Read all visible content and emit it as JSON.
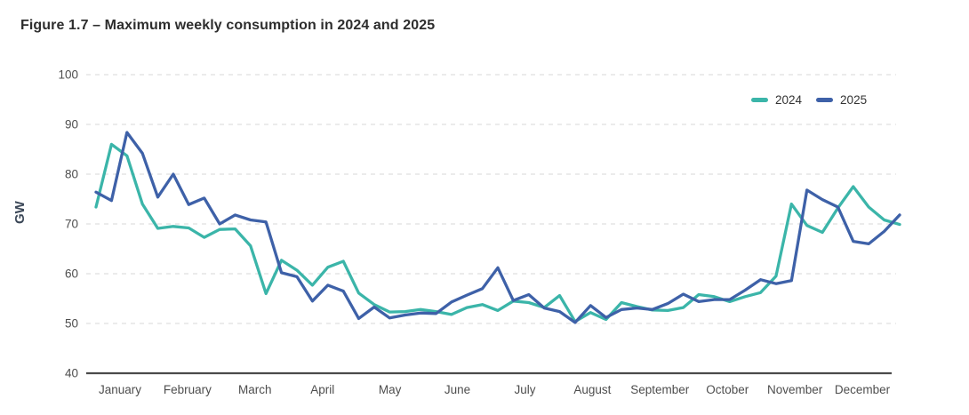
{
  "title": "Figure 1.7 – Maximum weekly consumption in 2024 and 2025",
  "y_axis_title": "GW",
  "legend": {
    "items": [
      {
        "label": "2024",
        "color": "#3bb5a9"
      },
      {
        "label": "2025",
        "color": "#3e61a8"
      }
    ]
  },
  "chart_data": {
    "type": "line",
    "title": "Figure 1.7 – Maximum weekly consumption in 2024 and 2025",
    "xlabel": "",
    "ylabel": "GW",
    "ylim": [
      40,
      100
    ],
    "yticks": [
      40,
      50,
      60,
      70,
      80,
      90,
      100
    ],
    "grid": "horizontal-dashed",
    "legend_position": "top-right",
    "x_unit": "week of year (53 weekly values per series)",
    "month_labels": [
      "January",
      "February",
      "March",
      "April",
      "May",
      "June",
      "July",
      "August",
      "September",
      "October",
      "November",
      "December"
    ],
    "series": [
      {
        "name": "2024",
        "color": "#3bb5a9",
        "values": [
          73.4,
          86.0,
          83.7,
          74.0,
          69.1,
          69.5,
          69.2,
          67.3,
          68.9,
          69.0,
          65.6,
          56.0,
          62.7,
          60.7,
          57.7,
          61.3,
          62.5,
          56.1,
          53.8,
          52.3,
          52.4,
          52.8,
          52.4,
          51.8,
          53.2,
          53.8,
          52.6,
          54.5,
          54.2,
          53.2,
          55.6,
          50.4,
          52.2,
          50.8,
          54.2,
          53.4,
          52.7,
          52.6,
          53.2,
          55.8,
          55.4,
          54.4,
          55.4,
          56.2,
          59.5,
          74.0,
          69.7,
          68.3,
          73.2,
          77.5,
          73.4,
          70.8,
          69.9
        ]
      },
      {
        "name": "2025",
        "color": "#3e61a8",
        "values": [
          76.4,
          74.7,
          88.4,
          84.2,
          75.4,
          80.0,
          73.9,
          75.2,
          70.0,
          71.8,
          70.8,
          70.4,
          60.2,
          59.4,
          54.5,
          57.7,
          56.5,
          51.0,
          53.3,
          51.1,
          51.7,
          52.1,
          52.0,
          54.3,
          55.7,
          57.0,
          61.2,
          54.6,
          55.8,
          53.1,
          52.4,
          50.2,
          53.6,
          51.2,
          52.8,
          53.1,
          52.8,
          54.0,
          55.9,
          54.4,
          54.8,
          54.8,
          56.7,
          58.8,
          58.0,
          58.6,
          76.8,
          74.9,
          73.4,
          66.5,
          66.0,
          68.5,
          71.8
        ]
      }
    ],
    "colors": {
      "gridline": "#d7d7d7",
      "axis_line": "#4b4b4b",
      "tick_label": "#4e4e4e",
      "title_text": "#2d2d2d"
    }
  }
}
